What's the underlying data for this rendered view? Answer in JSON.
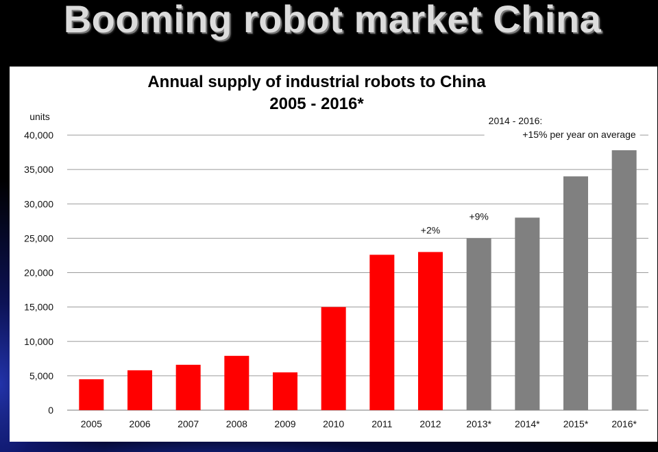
{
  "slide": {
    "title": "Booming robot market China"
  },
  "chart_data": {
    "type": "bar",
    "title": "Annual supply of industrial robots to China",
    "subtitle": "2005 - 2016*",
    "ylabel": "units",
    "xlabel": "",
    "ylim": [
      0,
      40000
    ],
    "yticks": [
      0,
      5000,
      10000,
      15000,
      20000,
      25000,
      30000,
      35000,
      40000
    ],
    "ytick_labels": [
      "0",
      "5,000",
      "10,000",
      "15,000",
      "20,000",
      "25,000",
      "30,000",
      "35,000",
      "40,000"
    ],
    "grid": true,
    "categories": [
      "2005",
      "2006",
      "2007",
      "2008",
      "2009",
      "2010",
      "2011",
      "2012",
      "2013*",
      "2014*",
      "2015*",
      "2016*"
    ],
    "values": [
      4500,
      5800,
      6600,
      7900,
      5500,
      15000,
      22600,
      23000,
      25000,
      28000,
      34000,
      37800
    ],
    "bar_colors": [
      "#ff0000",
      "#ff0000",
      "#ff0000",
      "#ff0000",
      "#ff0000",
      "#ff0000",
      "#ff0000",
      "#ff0000",
      "#808080",
      "#808080",
      "#808080",
      "#808080"
    ],
    "annotations": [
      {
        "category": "2012",
        "text": "+2%"
      },
      {
        "category": "2013*",
        "text": "+9%"
      },
      {
        "category": "2016*",
        "lines": [
          "2014 - 2016:",
          "+15% per year on average"
        ]
      }
    ]
  }
}
